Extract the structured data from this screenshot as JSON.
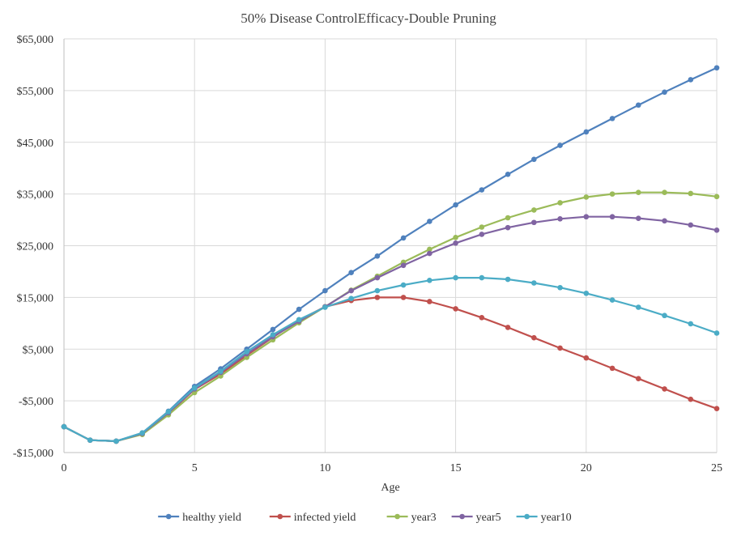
{
  "chart_data": {
    "type": "line",
    "title": "50% Disease ControlEfficacy-Double  Pruning",
    "xlabel": "Age",
    "ylabel": "",
    "xlim": [
      0,
      25
    ],
    "ylim": [
      -15000,
      65000
    ],
    "xticks": [
      0,
      5,
      10,
      15,
      20,
      25
    ],
    "yticks": [
      -15000,
      -5000,
      5000,
      15000,
      25000,
      35000,
      45000,
      55000,
      65000
    ],
    "ytick_labels": [
      "-$15,000",
      "-$5,000",
      "$5,000",
      "$15,000",
      "$25,000",
      "$35,000",
      "$45,000",
      "$55,000",
      "$65,000"
    ],
    "grid": "vertical and horizontal",
    "legend_position": "bottom",
    "x": [
      0,
      1,
      2,
      3,
      4,
      5,
      6,
      7,
      8,
      9,
      10,
      11,
      12,
      13,
      14,
      15,
      16,
      17,
      18,
      19,
      20,
      21,
      22,
      23,
      24,
      25
    ],
    "series": [
      {
        "name": "healthy yield",
        "color": "#4f81bd",
        "values": [
          -10000,
          -12600,
          -12800,
          -11200,
          -7000,
          -2200,
          1200,
          5000,
          8800,
          12700,
          16300,
          19800,
          23000,
          26500,
          29700,
          32900,
          35800,
          38800,
          41700,
          44400,
          47000,
          49600,
          52200,
          54700,
          57100,
          59400
        ]
      },
      {
        "name": "infected yield",
        "color": "#c0504d",
        "values": [
          -10000,
          -12600,
          -12800,
          -11300,
          -7400,
          -2800,
          200,
          3800,
          7300,
          10600,
          13200,
          14400,
          15000,
          15000,
          14200,
          12800,
          11100,
          9200,
          7200,
          5200,
          3300,
          1300,
          -700,
          -2700,
          -4700,
          -6500
        ]
      },
      {
        "name": "year3",
        "color": "#9bbb59",
        "values": [
          -10000,
          -12600,
          -12800,
          -11500,
          -7700,
          -3400,
          -200,
          3400,
          6800,
          10100,
          13200,
          16400,
          19100,
          21800,
          24300,
          26600,
          28600,
          30400,
          31900,
          33300,
          34400,
          35000,
          35300,
          35300,
          35100,
          34500
        ]
      },
      {
        "name": "year5",
        "color": "#8064a2",
        "values": [
          -10000,
          -12600,
          -12800,
          -11300,
          -7300,
          -2700,
          500,
          4100,
          7400,
          10400,
          13200,
          16300,
          18800,
          21200,
          23500,
          25500,
          27200,
          28500,
          29500,
          30200,
          30600,
          30600,
          30300,
          29800,
          29000,
          28000
        ]
      },
      {
        "name": "year10",
        "color": "#4bacc6",
        "values": [
          -10000,
          -12600,
          -12800,
          -11200,
          -7100,
          -2500,
          700,
          4500,
          7800,
          10700,
          13100,
          14800,
          16300,
          17400,
          18300,
          18800,
          18800,
          18500,
          17800,
          16900,
          15800,
          14500,
          13100,
          11500,
          9900,
          8100
        ]
      }
    ]
  }
}
